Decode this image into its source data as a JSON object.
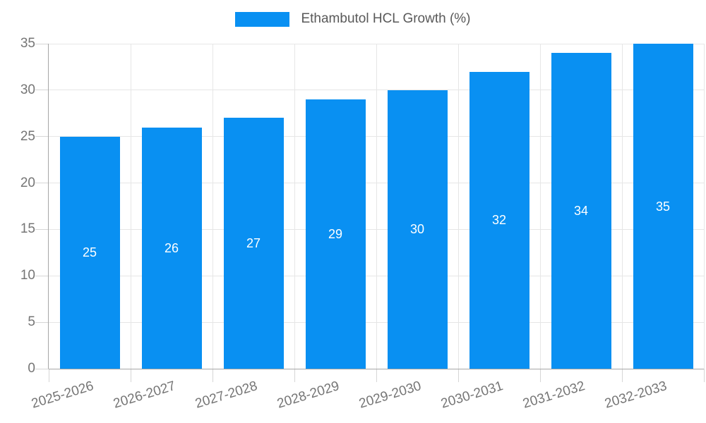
{
  "chart_data": {
    "type": "bar",
    "title": "Ethambutol HCL Growth (%)",
    "categories": [
      "2025-2026",
      "2026-2027",
      "2027-2028",
      "2028-2029",
      "2029-2030",
      "2030-2031",
      "2031-2032",
      "2032-2033"
    ],
    "values": [
      25,
      26,
      27,
      29,
      30,
      32,
      34,
      35
    ],
    "value_labels_shown": true,
    "value_label_position": "inside-center",
    "xlabel": "",
    "ylabel": "",
    "ylim": [
      0,
      35
    ],
    "yticks": [
      0,
      5,
      10,
      15,
      20,
      25,
      30,
      35
    ],
    "grid": "on",
    "legend_position": "top-center",
    "colors": {
      "bar": "#0990f2",
      "gridline": "#e6e6e6",
      "axis_border": "#a6a6a6",
      "tick_mark": "#d6d6d6",
      "tick_label": "#757575",
      "legend_text": "#595959",
      "value_label": "#ffffff",
      "background": "#ffffff"
    }
  }
}
